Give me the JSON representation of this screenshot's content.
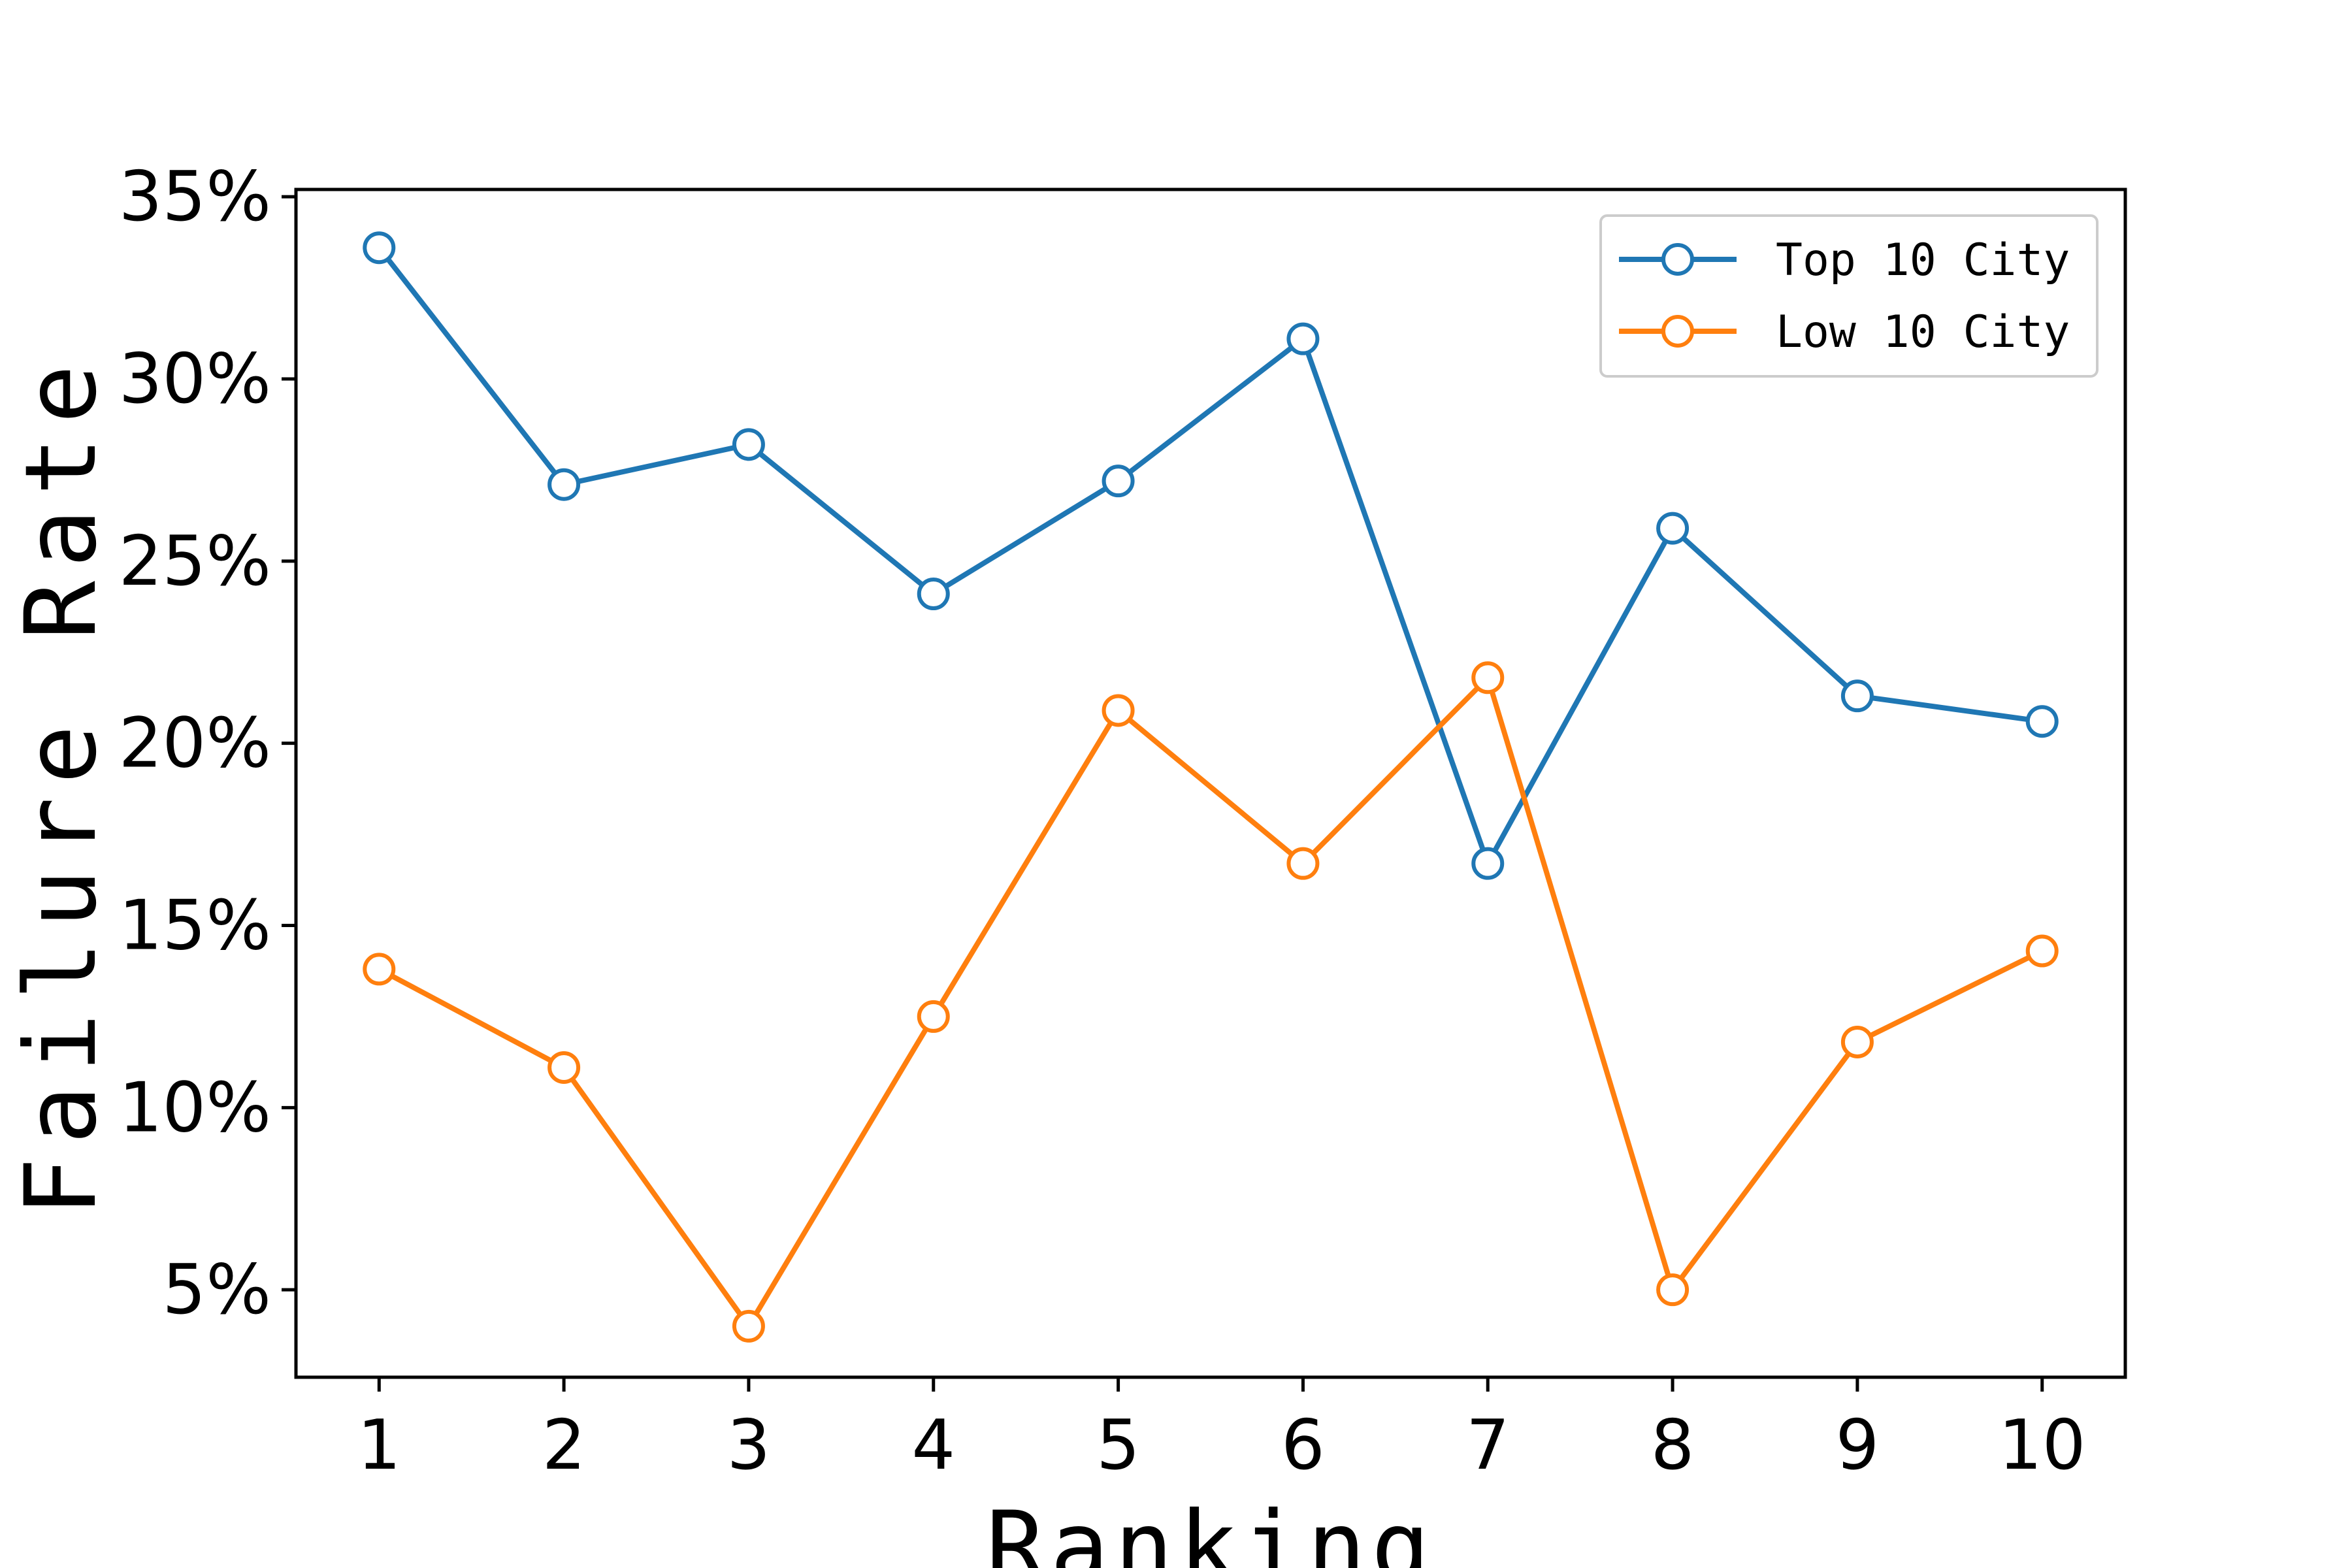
{
  "chart_data": {
    "type": "line",
    "title": "",
    "xlabel": "Ranking",
    "ylabel": "Failure Rate",
    "x": [
      1,
      2,
      3,
      4,
      5,
      6,
      7,
      8,
      9,
      10
    ],
    "xticks": [
      "1",
      "2",
      "3",
      "4",
      "5",
      "6",
      "7",
      "8",
      "9",
      "10"
    ],
    "yticks": [
      5,
      10,
      15,
      20,
      25,
      30,
      35
    ],
    "ytick_labels": [
      "5%",
      "10%",
      "15%",
      "20%",
      "25%",
      "30%",
      "35%"
    ],
    "xlim": [
      0.55,
      10.45
    ],
    "ylim": [
      2.6,
      35.2
    ],
    "grid": false,
    "legend_position": "top-right",
    "series": [
      {
        "name": "Top 10 City",
        "color": "#1f77b4",
        "marker": "open-circle",
        "values": [
          33.6,
          27.1,
          28.2,
          24.1,
          27.2,
          31.1,
          16.7,
          25.9,
          21.3,
          20.6
        ]
      },
      {
        "name": "Low 10 City",
        "color": "#ff7f0e",
        "marker": "open-circle",
        "values": [
          13.8,
          11.1,
          4.0,
          12.5,
          20.9,
          16.7,
          21.8,
          5.0,
          11.8,
          14.3
        ]
      }
    ]
  }
}
